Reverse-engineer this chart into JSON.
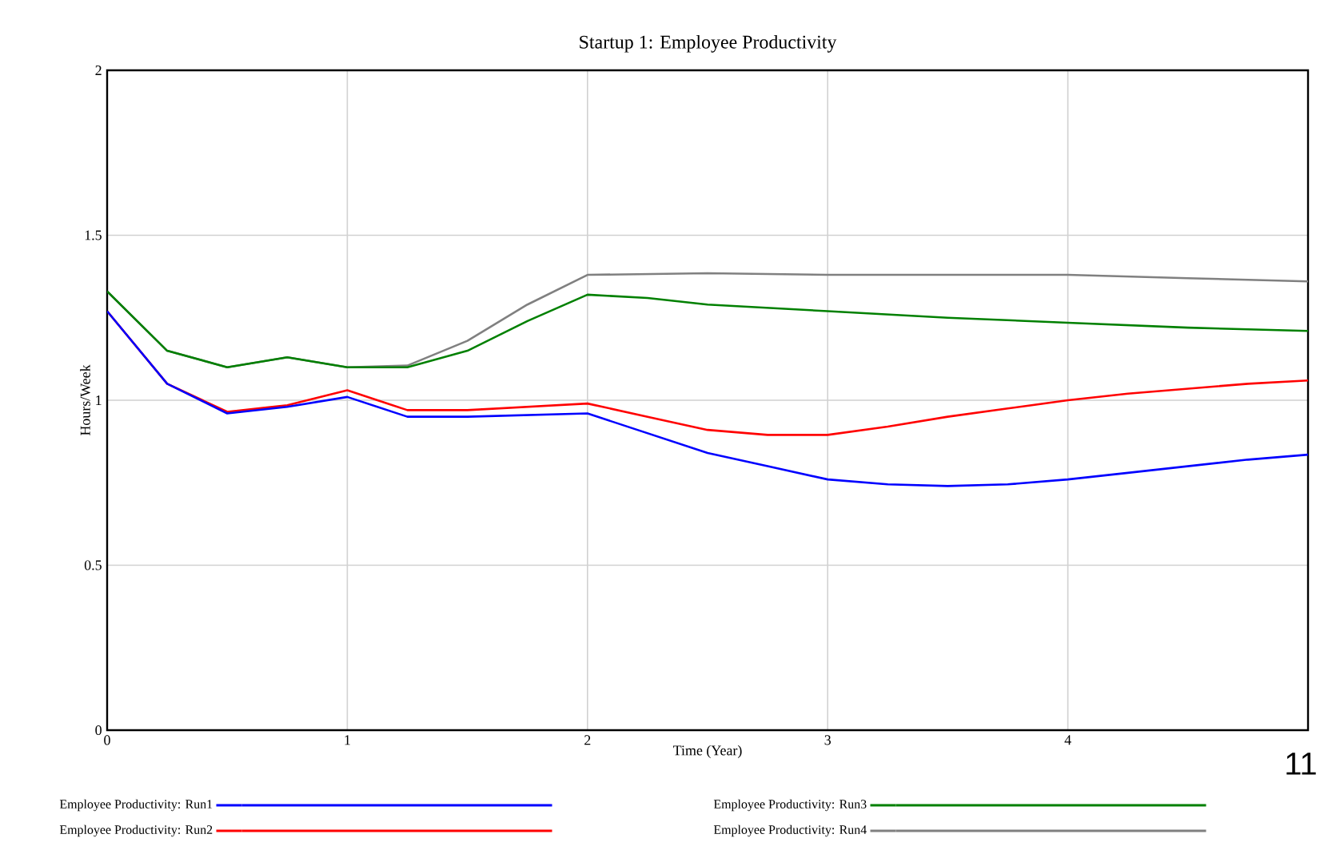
{
  "chart_data": {
    "type": "line",
    "title": "Startup 1: Employee Productivity",
    "xlabel": "Time (Year)",
    "ylabel": "Hours/Week",
    "xlim": [
      0,
      5
    ],
    "xticks": [
      0,
      1,
      2,
      3,
      4
    ],
    "ylim": [
      0,
      2
    ],
    "yticks": [
      0,
      0.5,
      1,
      1.5,
      2
    ],
    "grid": true,
    "legend": "bottom",
    "line_style": "solid",
    "annotations": [
      "11"
    ],
    "series": [
      {
        "name": "Employee Productivity: Run1",
        "color": "#0000ff",
        "x": [
          0,
          0.25,
          0.5,
          0.75,
          1,
          1.25,
          1.5,
          2,
          2.25,
          2.5,
          2.75,
          3,
          3.25,
          3.5,
          3.75,
          4,
          4.25,
          4.5,
          4.75,
          5
        ],
        "values": [
          1.27,
          1.05,
          0.96,
          0.98,
          1.01,
          0.95,
          0.95,
          0.96,
          0.9,
          0.84,
          0.8,
          0.76,
          0.745,
          0.74,
          0.745,
          0.76,
          0.78,
          0.8,
          0.82,
          0.835
        ]
      },
      {
        "name": "Employee Productivity: Run2",
        "color": "#ff0000",
        "x": [
          0,
          0.25,
          0.5,
          0.75,
          1,
          1.25,
          1.5,
          2,
          2.25,
          2.5,
          2.75,
          3,
          3.25,
          3.5,
          3.75,
          4,
          4.25,
          4.5,
          4.75,
          5
        ],
        "values": [
          1.27,
          1.05,
          0.965,
          0.985,
          1.03,
          0.97,
          0.97,
          0.99,
          0.95,
          0.91,
          0.895,
          0.895,
          0.92,
          0.95,
          0.975,
          1.0,
          1.02,
          1.035,
          1.05,
          1.06
        ]
      },
      {
        "name": "Employee Productivity: Run3",
        "color": "#008000",
        "x": [
          0,
          0.25,
          0.5,
          0.75,
          1,
          1.25,
          1.5,
          1.75,
          2,
          2.25,
          2.5,
          3,
          3.5,
          4,
          4.5,
          5
        ],
        "values": [
          1.33,
          1.15,
          1.1,
          1.13,
          1.1,
          1.1,
          1.15,
          1.24,
          1.32,
          1.31,
          1.29,
          1.27,
          1.25,
          1.235,
          1.22,
          1.21
        ]
      },
      {
        "name": "Employee Productivity: Run4",
        "color": "#808080",
        "x": [
          0,
          0.25,
          0.5,
          0.75,
          1,
          1.25,
          1.5,
          1.75,
          2,
          2.5,
          3,
          4,
          4.5,
          5
        ],
        "values": [
          1.33,
          1.15,
          1.1,
          1.13,
          1.1,
          1.105,
          1.18,
          1.29,
          1.38,
          1.385,
          1.38,
          1.38,
          1.37,
          1.36
        ]
      }
    ]
  }
}
